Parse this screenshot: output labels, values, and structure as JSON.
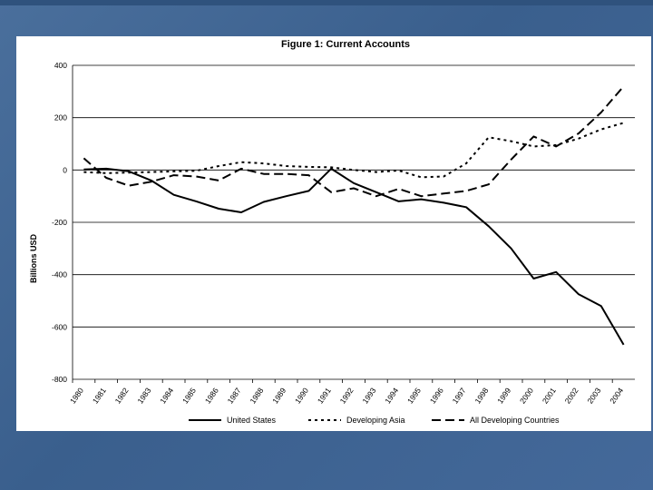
{
  "chart_data": {
    "type": "line",
    "title": "Figure 1: Current Accounts",
    "xlabel": "",
    "ylabel": "Billions USD",
    "ylim": [
      -800,
      400
    ],
    "yticks": [
      400,
      200,
      0,
      -200,
      -400,
      -600,
      -800
    ],
    "categories": [
      "1980",
      "1981",
      "1982",
      "1983",
      "1984",
      "1985",
      "1986",
      "1987",
      "1988",
      "1989",
      "1990",
      "1991",
      "1992",
      "1993",
      "1994",
      "1995",
      "1996",
      "1997",
      "1998",
      "1999",
      "2000",
      "2001",
      "2002",
      "2003",
      "2004"
    ],
    "grid": true,
    "legend_position": "bottom",
    "series": [
      {
        "name": "United States",
        "style": "solid",
        "color": "#000000",
        "values": [
          2,
          5,
          -5,
          -40,
          -95,
          -120,
          -148,
          -162,
          -122,
          -100,
          -80,
          5,
          -50,
          -85,
          -120,
          -112,
          -125,
          -142,
          -215,
          -300,
          -415,
          -390,
          -475,
          -520,
          -668
        ]
      },
      {
        "name": "Developing Asia",
        "style": "dotted",
        "color": "#000000",
        "values": [
          -8,
          -12,
          -10,
          -8,
          -5,
          -3,
          15,
          30,
          25,
          15,
          12,
          10,
          0,
          -8,
          -2,
          -28,
          -25,
          25,
          125,
          110,
          90,
          95,
          120,
          155,
          180
        ]
      },
      {
        "name": "All Developing Countries",
        "style": "dashed",
        "color": "#000000",
        "values": [
          45,
          -30,
          -60,
          -45,
          -20,
          -25,
          -40,
          5,
          -15,
          -15,
          -20,
          -85,
          -70,
          -100,
          -72,
          -100,
          -90,
          -80,
          -55,
          40,
          128,
          90,
          140,
          220,
          320
        ]
      }
    ]
  }
}
